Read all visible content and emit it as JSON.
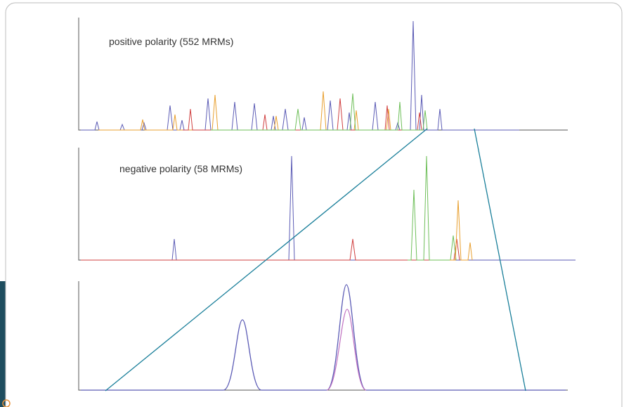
{
  "panels": [
    {
      "label": "positive polarity (552 MRMs)"
    },
    {
      "label": "negative polarity (58 MRMs)"
    }
  ]
}
